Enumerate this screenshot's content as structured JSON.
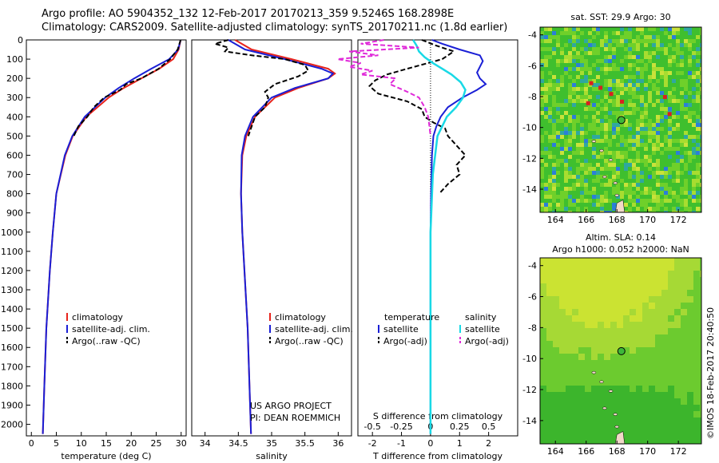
{
  "header": {
    "line1": "Argo profile: AO 5904352_132 12-Feb-2017 20170213_359 9.5246S 168.2898E",
    "line2": "Climatology: CARS2009. Satellite-adjusted climatology: synTS_20170211.nc (1.8d earlier)"
  },
  "colors": {
    "climatology": "#e8231b",
    "satellite": "#1a1fd6",
    "argo": "#000000",
    "sat_salinity": "#19d9e6",
    "argo_salinity": "#e02ad9"
  },
  "chart_data": [
    {
      "type": "line",
      "name": "temperature-profile",
      "xlabel": "temperature (deg C)",
      "xlim": [
        -1,
        31
      ],
      "ylim": [
        2060,
        0
      ],
      "xticks": [
        0,
        5,
        10,
        15,
        20,
        25,
        30
      ],
      "yticks": [
        0,
        100,
        200,
        300,
        400,
        500,
        600,
        700,
        800,
        900,
        1000,
        1100,
        1200,
        1300,
        1400,
        1500,
        1600,
        1700,
        1800,
        1900,
        2000
      ],
      "legend": [
        "climatology",
        "satellite-adj. clim.",
        "Argo(..raw -QC)"
      ],
      "series": [
        {
          "name": "climatology",
          "depth": [
            0,
            50,
            100,
            150,
            200,
            250,
            300,
            400,
            500,
            600,
            800,
            1000,
            1200,
            1500,
            1800,
            2050
          ],
          "values": [
            29.9,
            29.5,
            28.4,
            25.6,
            22.0,
            18.5,
            15.5,
            11.0,
            8.3,
            6.8,
            5.0,
            4.3,
            3.7,
            3.0,
            2.6,
            2.3
          ]
        },
        {
          "name": "satellite-adj. clim.",
          "depth": [
            0,
            50,
            100,
            150,
            200,
            250,
            300,
            400,
            500,
            600,
            800,
            1000,
            1200,
            1500,
            1800,
            2050
          ],
          "values": [
            29.9,
            29.4,
            27.6,
            24.0,
            20.6,
            17.5,
            14.8,
            10.7,
            8.2,
            6.7,
            5.0,
            4.3,
            3.7,
            3.0,
            2.6,
            2.3
          ]
        },
        {
          "name": "Argo(..raw -QC)",
          "depth": [
            0,
            50,
            100,
            150,
            200,
            230,
            260,
            300,
            350,
            400,
            450,
            500
          ],
          "values": [
            29.9,
            29.3,
            27.8,
            25.5,
            22.0,
            19.0,
            17.8,
            14.6,
            12.5,
            11.2,
            9.4,
            8.5
          ]
        }
      ]
    },
    {
      "type": "line",
      "name": "salinity-profile",
      "xlabel": "salinity",
      "xlim": [
        33.8,
        36.2
      ],
      "ylim": [
        2060,
        0
      ],
      "xticks": [
        34,
        34.5,
        35,
        35.5,
        36
      ],
      "legend": [
        "climatology",
        "satellite-adj. clim.",
        "Argo(..raw -QC)"
      ],
      "series": [
        {
          "name": "climatology",
          "depth": [
            0,
            50,
            100,
            150,
            175,
            200,
            250,
            300,
            400,
            500,
            600,
            800,
            1000,
            1500,
            2050
          ],
          "values": [
            34.45,
            34.7,
            35.3,
            35.85,
            35.95,
            35.85,
            35.4,
            35.05,
            34.75,
            34.62,
            34.56,
            34.54,
            34.56,
            34.64,
            34.69
          ]
        },
        {
          "name": "satellite-adj. clim.",
          "depth": [
            0,
            50,
            100,
            150,
            175,
            200,
            250,
            300,
            400,
            500,
            600,
            800,
            1000,
            1500,
            2050
          ],
          "values": [
            34.35,
            34.6,
            35.2,
            35.75,
            35.92,
            35.85,
            35.35,
            35.0,
            34.72,
            34.6,
            34.55,
            34.54,
            34.56,
            34.64,
            34.69
          ]
        },
        {
          "name": "Argo(..raw -QC)",
          "depth": [
            0,
            20,
            40,
            60,
            80,
            100,
            130,
            160,
            190,
            230,
            270,
            300,
            350,
            400,
            450,
            500
          ],
          "values": [
            34.35,
            34.15,
            34.35,
            34.3,
            34.7,
            35.2,
            35.5,
            35.55,
            35.4,
            35.05,
            34.9,
            34.95,
            34.9,
            34.75,
            34.7,
            34.65
          ]
        }
      ]
    },
    {
      "type": "line",
      "name": "difference-profile",
      "xlabel_top": "S difference from climatology",
      "xlabel_bottom": "T difference from climatology",
      "xlim": [
        -2.5,
        3.0
      ],
      "ylim": [
        2060,
        0
      ],
      "s_ticks": [
        -0.5,
        -0.25,
        0,
        0.25,
        0.5
      ],
      "t_ticks": [
        -2,
        -1,
        0,
        1,
        2
      ],
      "legend_headers": [
        "temperature",
        "salinity"
      ],
      "legend": [
        "satellite",
        "Argo(-adj)",
        "satellite",
        "Argo(-adj)"
      ],
      "series": [
        {
          "name": "T satellite",
          "depth": [
            0,
            20,
            50,
            80,
            110,
            140,
            170,
            200,
            230,
            260,
            300,
            350,
            400,
            450,
            500,
            600,
            800,
            1000,
            1500,
            2050
          ],
          "values": [
            0.05,
            0.4,
            1.0,
            1.7,
            1.8,
            1.7,
            1.6,
            1.7,
            1.9,
            1.6,
            1.1,
            0.6,
            0.35,
            0.2,
            0.1,
            0.05,
            0.02,
            0.0,
            0.0,
            0.0
          ]
        },
        {
          "name": "T Argo(-adj)",
          "depth": [
            0,
            30,
            60,
            100,
            150,
            180,
            210,
            240,
            280,
            320,
            360,
            400,
            430,
            460,
            500,
            550,
            600,
            650,
            700,
            750,
            800
          ],
          "values": [
            -0.3,
            0.2,
            0.8,
            0.4,
            -0.8,
            -1.5,
            -1.9,
            -2.1,
            -1.8,
            -0.8,
            -0.3,
            -0.2,
            0.1,
            0.5,
            0.6,
            0.9,
            1.2,
            0.9,
            1.0,
            0.6,
            0.3
          ]
        },
        {
          "name": "S satellite",
          "depth": [
            0,
            30,
            60,
            90,
            120,
            150,
            180,
            220,
            260,
            300,
            350,
            400,
            500,
            700,
            1000,
            1500,
            2050
          ],
          "values": [
            -0.15,
            -0.12,
            -0.1,
            -0.05,
            0.02,
            0.1,
            0.18,
            0.26,
            0.3,
            0.28,
            0.22,
            0.14,
            0.06,
            0.02,
            0.0,
            0.0,
            0.0
          ]
        },
        {
          "name": "S Argo(-adj)",
          "depth": [
            0,
            20,
            40,
            60,
            80,
            100,
            120,
            140,
            160,
            180,
            200,
            230,
            270,
            300,
            350,
            400,
            450,
            500
          ],
          "values": [
            -0.4,
            -0.6,
            -0.1,
            -0.7,
            -0.45,
            -0.8,
            -0.6,
            -0.7,
            -0.5,
            -0.6,
            -0.3,
            -0.35,
            -0.2,
            -0.1,
            -0.05,
            -0.02,
            -0.01,
            0.0
          ]
        }
      ]
    },
    {
      "type": "heatmap",
      "name": "sst-map",
      "title": "sat. SST: 29.9 Argo: 30",
      "xticks": [
        164,
        166,
        168,
        170,
        172
      ],
      "yticks": [
        -4,
        -6,
        -8,
        -10,
        -12,
        -14
      ],
      "xlim": [
        163,
        173.5
      ],
      "ylim": [
        -15.5,
        -3.5
      ],
      "argo_position": [
        168.29,
        -9.52
      ]
    },
    {
      "type": "heatmap",
      "name": "sla-map",
      "title_line1": "Altim. SLA: 0.14",
      "title_line2": "Argo h1000: 0.052 h2000: NaN",
      "xticks": [
        164,
        166,
        168,
        170,
        172
      ],
      "yticks": [
        -4,
        -6,
        -8,
        -10,
        -12,
        -14
      ],
      "xlim": [
        163,
        173.5
      ],
      "ylim": [
        -15.5,
        -3.5
      ],
      "argo_position": [
        168.29,
        -9.52
      ]
    }
  ],
  "credits": {
    "project": "US ARGO PROJECT",
    "pi": "PI: DEAN ROEMMICH",
    "stamp": "©IMOS 18-Feb-2017 20:40:50"
  }
}
